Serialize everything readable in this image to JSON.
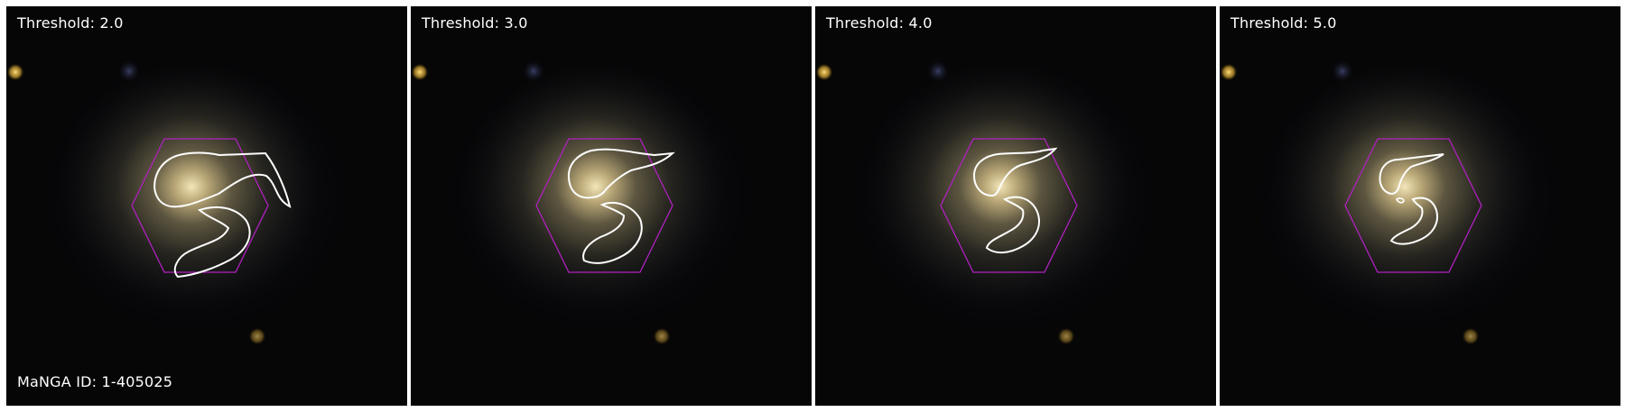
{
  "panels": [
    {
      "threshold_label": "Threshold: 2.0",
      "contour_level": 2.0
    },
    {
      "threshold_label": "Threshold: 3.0",
      "contour_level": 3.0
    },
    {
      "threshold_label": "Threshold: 4.0",
      "contour_level": 4.0
    },
    {
      "threshold_label": "Threshold: 5.0",
      "contour_level": 5.0
    }
  ],
  "manga_id_label": "MaNGA ID: 1-405025",
  "colors": {
    "hexagon": "#b020c0",
    "contour": "#ffffff",
    "label_text": "#ffffff",
    "background": "#060607"
  },
  "icons": {
    "galaxy": "spiral-galaxy-image",
    "footprint": "hexagon-ifu-footprint",
    "contour": "threshold-contour"
  }
}
